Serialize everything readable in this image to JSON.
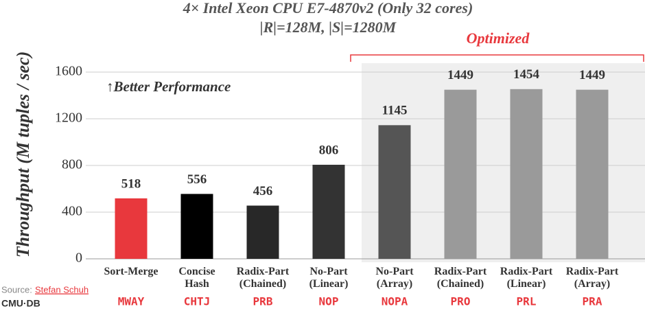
{
  "chart_data": {
    "type": "bar",
    "title": "4× Intel Xeon CPU E7-4870v2 (Only 32 cores)",
    "subtitle": "|R|=128M, |S|=1280M",
    "y_label": "Throughput (M tuples / sec)",
    "annotations": [
      "↑Better Performance",
      "Optimized"
    ],
    "categories": [
      [
        "Sort-Merge"
      ],
      [
        "Concise",
        "Hash"
      ],
      [
        "Radix-Part",
        "(Chained)"
      ],
      [
        "No-Part",
        "(Linear)"
      ],
      [
        "No-Part",
        "(Array)"
      ],
      [
        "Radix-Part",
        "(Chained)"
      ],
      [
        "Radix-Part",
        "(Linear)"
      ],
      [
        "Radix-Part",
        "(Array)"
      ]
    ],
    "codes": [
      "MWAY",
      "CHTJ",
      "PRB",
      "NOP",
      "NOPA",
      "PRO",
      "PRL",
      "PRA"
    ],
    "values": [
      518,
      556,
      456,
      806,
      1145,
      1449,
      1454,
      1449
    ],
    "colors": [
      "#e8383d",
      "#000000",
      "#282828",
      "#333333",
      "#555555",
      "#9a9a9a",
      "#9a9a9a",
      "#9a9a9a"
    ],
    "ylim": [
      0,
      1600
    ],
    "yticks": [
      0,
      400,
      800,
      1200,
      1600
    ],
    "grid": true
  },
  "footer": {
    "source_label": "Source:",
    "source_name": "Stefan Schuh",
    "logo": "CMU·DB"
  }
}
